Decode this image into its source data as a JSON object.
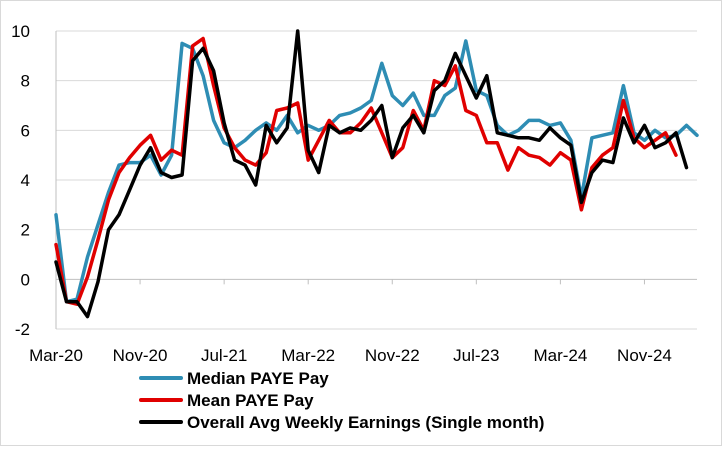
{
  "chart_data": {
    "type": "line",
    "title": "",
    "xlabel": "",
    "ylabel": "",
    "ylim": [
      -2,
      10
    ],
    "yticks": [
      -2,
      0,
      2,
      4,
      6,
      8,
      10
    ],
    "xtick_labels": [
      "Mar-20",
      "Nov-20",
      "Jul-21",
      "Mar-22",
      "Nov-22",
      "Jul-23",
      "Mar-24",
      "Nov-24"
    ],
    "xtick_positions": [
      0,
      8,
      16,
      24,
      32,
      40,
      48,
      56
    ],
    "x_start": "Feb-20",
    "grid": "horizontal",
    "legend_position": "bottom",
    "series": [
      {
        "name": "Median PAYE Pay",
        "color": "#2e8db4",
        "values": [
          2.6,
          -0.9,
          -0.8,
          0.9,
          2.2,
          3.5,
          4.6,
          4.7,
          4.7,
          5.0,
          4.2,
          5.0,
          9.5,
          9.3,
          8.2,
          6.4,
          5.5,
          5.3,
          5.6,
          6.0,
          6.3,
          6.0,
          6.6,
          5.9,
          6.2,
          6.0,
          6.2,
          6.6,
          6.7,
          6.9,
          7.2,
          8.7,
          7.4,
          7.0,
          7.5,
          6.6,
          6.6,
          7.4,
          7.7,
          9.6,
          7.6,
          7.4,
          6.2,
          5.8,
          6.0,
          6.4,
          6.4,
          6.2,
          6.3,
          5.6,
          3.3,
          5.7,
          5.8,
          5.9,
          7.8,
          5.9,
          5.6,
          6.0,
          5.7,
          5.8,
          6.2,
          5.8
        ]
      },
      {
        "name": "Mean PAYE Pay",
        "color": "#e00000",
        "values": [
          1.4,
          -0.9,
          -1.0,
          0.1,
          1.6,
          3.2,
          4.3,
          4.9,
          5.4,
          5.8,
          4.8,
          5.2,
          5.0,
          9.4,
          9.7,
          7.8,
          6.1,
          5.3,
          4.8,
          4.6,
          5.1,
          6.8,
          6.9,
          7.1,
          4.8,
          5.6,
          6.4,
          5.9,
          5.9,
          6.3,
          6.9,
          5.9,
          4.9,
          5.3,
          6.8,
          6.0,
          8.0,
          7.8,
          8.6,
          6.8,
          6.6,
          5.5,
          5.5,
          4.4,
          5.3,
          5.0,
          4.9,
          4.6,
          5.1,
          4.8,
          2.8,
          4.5,
          5.0,
          5.3,
          7.2,
          5.7,
          5.3,
          5.6,
          5.9,
          5.0
        ]
      },
      {
        "name": "Overall Avg Weekly Earnings (Single month)",
        "color": "#000000",
        "values": [
          0.7,
          -0.9,
          -0.9,
          -1.5,
          -0.1,
          2.0,
          2.6,
          3.6,
          4.6,
          5.3,
          4.3,
          4.1,
          4.2,
          8.8,
          9.3,
          8.4,
          6.3,
          4.8,
          4.6,
          3.8,
          6.2,
          5.5,
          6.1,
          10.0,
          5.2,
          4.3,
          6.2,
          5.9,
          6.1,
          6.0,
          6.4,
          7.0,
          4.9,
          6.1,
          6.6,
          5.9,
          7.6,
          8.0,
          9.1,
          8.2,
          7.3,
          8.2,
          5.9,
          5.8,
          5.7,
          5.7,
          5.6,
          6.1,
          5.7,
          5.4,
          3.1,
          4.3,
          4.8,
          4.7,
          6.5,
          5.5,
          6.2,
          5.3,
          5.5,
          5.9,
          4.5
        ]
      }
    ]
  }
}
